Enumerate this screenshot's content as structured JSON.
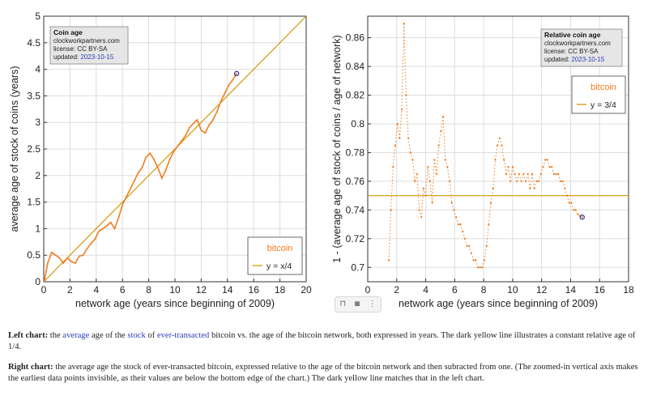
{
  "colors": {
    "bitcoin": "#f07c1e",
    "reference_line": "#d4a017",
    "axis": "#333333",
    "grid": "#dddddd",
    "marker": "#2a2a9a",
    "link": "#2a3fb4"
  },
  "chart_data": [
    {
      "type": "line",
      "title_box": {
        "title": "Coin age",
        "site": "clockworkpartners.com",
        "license": "license: CC BY-SA",
        "updated_label": "updated: ",
        "updated_date": "2023-10-15"
      },
      "xlabel": "network age (years since beginning of 2009)",
      "ylabel": "average age of stock of coins (years)",
      "xlim": [
        0,
        20
      ],
      "ylim": [
        0,
        5
      ],
      "xticks": [
        0,
        2,
        4,
        6,
        8,
        10,
        12,
        14,
        16,
        18,
        20
      ],
      "yticks": [
        0,
        0.5,
        1,
        1.5,
        2,
        2.5,
        3,
        3.5,
        4,
        4.5,
        5
      ],
      "grid": true,
      "legend": {
        "title": "bitcoin",
        "entry": "y = x/4",
        "placement": "bottom-right"
      },
      "reference_line": {
        "label": "y = x/4",
        "points": [
          [
            0,
            0
          ],
          [
            20,
            5
          ]
        ]
      },
      "series": [
        {
          "name": "bitcoin",
          "x": [
            0.05,
            0.3,
            0.6,
            0.9,
            1.2,
            1.5,
            1.8,
            2.1,
            2.4,
            2.7,
            3.0,
            3.3,
            3.6,
            3.9,
            4.2,
            4.5,
            4.8,
            5.1,
            5.4,
            5.7,
            6.0,
            6.3,
            6.6,
            6.9,
            7.2,
            7.5,
            7.8,
            8.1,
            8.4,
            8.7,
            9.0,
            9.3,
            9.6,
            9.9,
            10.2,
            10.5,
            10.8,
            11.1,
            11.4,
            11.7,
            12.0,
            12.3,
            12.6,
            12.9,
            13.2,
            13.5,
            13.8,
            14.1,
            14.4,
            14.7
          ],
          "values": [
            0.02,
            0.35,
            0.55,
            0.5,
            0.45,
            0.35,
            0.45,
            0.38,
            0.35,
            0.48,
            0.5,
            0.62,
            0.72,
            0.8,
            0.95,
            1.0,
            1.05,
            1.12,
            1.0,
            1.2,
            1.45,
            1.6,
            1.75,
            1.9,
            2.05,
            2.15,
            2.35,
            2.42,
            2.3,
            2.15,
            1.95,
            2.1,
            2.3,
            2.45,
            2.55,
            2.65,
            2.75,
            2.9,
            2.98,
            3.05,
            2.85,
            2.8,
            2.95,
            3.05,
            3.2,
            3.4,
            3.55,
            3.7,
            3.8,
            3.92
          ]
        }
      ]
    },
    {
      "type": "scatter",
      "title_box": {
        "title": "Relative coin age",
        "site": "clockworkpartners.com",
        "license": "license: CC BY-SA",
        "updated_label": "updated: ",
        "updated_date": "2023-10-15"
      },
      "xlabel": "network age (years since beginning of 2009)",
      "ylabel": "1 - (average age of stock of coins / age of network)",
      "xlim": [
        0,
        18
      ],
      "ylim": [
        0.69,
        0.875
      ],
      "xticks": [
        0,
        2,
        4,
        6,
        8,
        10,
        12,
        14,
        16,
        18
      ],
      "yticks": [
        0.7,
        0.72,
        0.74,
        0.76,
        0.78,
        0.8,
        0.82,
        0.84,
        0.86
      ],
      "grid": true,
      "legend": {
        "title": "bitcoin",
        "entry": "y = 3/4",
        "placement": "top-right"
      },
      "reference_line": {
        "label": "y = 3/4",
        "y": 0.75
      },
      "series": [
        {
          "name": "bitcoin",
          "x": [
            1.45,
            1.6,
            1.75,
            1.9,
            2.05,
            2.2,
            2.35,
            2.5,
            2.65,
            2.8,
            2.95,
            3.1,
            3.25,
            3.4,
            3.55,
            3.7,
            3.85,
            4.0,
            4.15,
            4.3,
            4.45,
            4.6,
            4.75,
            4.9,
            5.05,
            5.2,
            5.35,
            5.5,
            5.65,
            5.8,
            5.95,
            6.1,
            6.25,
            6.4,
            6.55,
            6.7,
            6.85,
            7.0,
            7.15,
            7.3,
            7.45,
            7.6,
            7.75,
            7.9,
            8.05,
            8.2,
            8.35,
            8.5,
            8.65,
            8.8,
            8.95,
            9.1,
            9.25,
            9.4,
            9.55,
            9.7,
            9.85,
            10.0,
            10.15,
            10.3,
            10.45,
            10.6,
            10.75,
            10.9,
            11.05,
            11.2,
            11.35,
            11.5,
            11.65,
            11.8,
            11.95,
            12.1,
            12.25,
            12.4,
            12.55,
            12.7,
            12.85,
            13.0,
            13.15,
            13.3,
            13.45,
            13.6,
            13.75,
            13.9,
            14.05,
            14.2,
            14.35,
            14.5,
            14.65,
            14.8
          ],
          "values": [
            0.705,
            0.74,
            0.77,
            0.785,
            0.8,
            0.79,
            0.81,
            0.87,
            0.82,
            0.79,
            0.78,
            0.775,
            0.76,
            0.765,
            0.74,
            0.735,
            0.755,
            0.75,
            0.77,
            0.76,
            0.745,
            0.775,
            0.765,
            0.785,
            0.795,
            0.805,
            0.775,
            0.77,
            0.76,
            0.745,
            0.74,
            0.735,
            0.73,
            0.73,
            0.725,
            0.72,
            0.715,
            0.715,
            0.71,
            0.705,
            0.705,
            0.7,
            0.7,
            0.7,
            0.705,
            0.715,
            0.73,
            0.745,
            0.755,
            0.775,
            0.785,
            0.79,
            0.785,
            0.775,
            0.765,
            0.77,
            0.76,
            0.77,
            0.765,
            0.76,
            0.765,
            0.76,
            0.765,
            0.76,
            0.765,
            0.755,
            0.765,
            0.755,
            0.76,
            0.76,
            0.765,
            0.77,
            0.775,
            0.775,
            0.77,
            0.77,
            0.765,
            0.765,
            0.765,
            0.76,
            0.76,
            0.755,
            0.75,
            0.745,
            0.745,
            0.74,
            0.74,
            0.737,
            0.736,
            0.735
          ]
        }
      ]
    }
  ],
  "toolbar": {
    "bookmark_icon": "bookmark-icon",
    "camera_icon": "camera-icon",
    "more_icon": "more-vertical-icon",
    "bookmark_glyph": "⊓",
    "camera_glyph": "◙",
    "more_glyph": "⋮"
  },
  "captions": {
    "left": {
      "label": "Left chart:",
      "t1": " the ",
      "link_average": "average",
      "t2": " age of the ",
      "link_stock": "stock",
      "t3": " of ",
      "link_ever": "ever-transacted",
      "t4": " bitcoin vs. the age of the bitcoin network, both expressed in years. The dark yellow line illustrates a constant relative age of 1/4."
    },
    "right": {
      "label": "Right chart:",
      "text": " the average age the stock of ever-transacted bitcoin, expressed relative to the age of the bitcoin network and then subracted from one. (The zoomed-in vertical axis makes the earliest data points invisible, as their values are below the bottom edge of the chart.) The dark yellow line matches that in the left chart."
    }
  }
}
